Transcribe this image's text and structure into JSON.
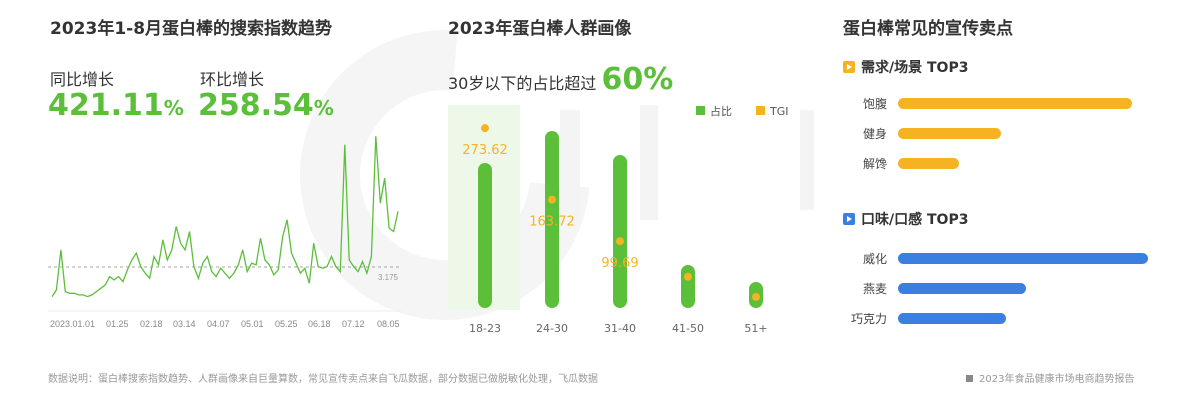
{
  "watermark": "飞瓜数据",
  "panel1": {
    "title": "2023年1-8月蛋白棒的搜索指数趋势",
    "yoy_label": "同比增长",
    "yoy_value": "421.11",
    "yoy_unit": "%",
    "mom_label": "环比增长",
    "mom_value": "258.54",
    "mom_unit": "%"
  },
  "panel2": {
    "title": "2023年蛋白棒人群画像",
    "headline": "30岁以下的占比超过",
    "headline_value": "60%"
  },
  "panel3": {
    "title": "蛋白棒常见的宣传卖点",
    "section1": {
      "title": "需求/场景 TOP3",
      "color": "#f5b324",
      "items": [
        {
          "label": "饱腹",
          "value": 100
        },
        {
          "label": "健身",
          "value": 44
        },
        {
          "label": "解馋",
          "value": 26
        }
      ]
    },
    "section2": {
      "title": "口味/口感 TOP3",
      "color": "#3b7fe0",
      "items": [
        {
          "label": "威化",
          "value": 100
        },
        {
          "label": "燕麦",
          "value": 51
        },
        {
          "label": "巧克力",
          "value": 43
        }
      ]
    }
  },
  "chart_data": [
    {
      "type": "line",
      "title": "2023年1-8月蛋白棒的搜索指数趋势",
      "x_ticks": [
        "2023.01.01",
        "01.25",
        "02.18",
        "03.14",
        "04.07",
        "05.01",
        "05.25",
        "06.18",
        "07.12",
        "08.05"
      ],
      "average_line": 3.175,
      "average_label": "3.175",
      "color": "#5bbf3a",
      "values": [
        1.4,
        1.8,
        4.2,
        1.7,
        1.6,
        1.6,
        1.5,
        1.5,
        1.4,
        1.5,
        1.7,
        1.9,
        2.1,
        2.6,
        2.4,
        2.6,
        2.3,
        3.0,
        3.6,
        4.0,
        3.2,
        2.8,
        2.5,
        3.8,
        3.3,
        4.8,
        3.6,
        4.2,
        5.6,
        4.6,
        4.2,
        5.3,
        3.2,
        2.5,
        3.4,
        3.8,
        2.9,
        2.6,
        3.1,
        2.8,
        2.5,
        2.8,
        3.3,
        4.2,
        2.9,
        3.4,
        3.3,
        4.9,
        3.6,
        3.3,
        2.7,
        3.0,
        5.0,
        6.0,
        4.0,
        3.4,
        2.8,
        3.1,
        2.2,
        4.6,
        3.2,
        3.1,
        3.2,
        3.8,
        3.2,
        2.9,
        10.5,
        3.6,
        3.2,
        2.9,
        3.5,
        2.8,
        3.8,
        11.0,
        7.0,
        8.5,
        5.5,
        5.3,
        6.5
      ],
      "ylim": [
        0,
        11.5
      ]
    },
    {
      "type": "bar",
      "title": "2023年蛋白棒人群画像",
      "categories": [
        "18-23",
        "24-30",
        "31-40",
        "41-50",
        "51+"
      ],
      "legend": [
        "占比",
        "TGI"
      ],
      "series": [
        {
          "name": "占比",
          "values": [
            145,
            177,
            153,
            43,
            26
          ],
          "color": "#5bbf3a"
        },
        {
          "name": "TGI",
          "values": [
            273.62,
            163.72,
            99.69,
            45,
            14
          ],
          "labels": [
            "273.62",
            "163.72",
            "99.69",
            "",
            ""
          ],
          "color": "#f5b324"
        }
      ],
      "highlight_category": "18-23"
    }
  ],
  "footer": {
    "note": "数据说明：蛋白棒搜索指数趋势、人群画像来自巨量算数，常见宣传卖点来自飞瓜数据，部分数据已做脱敏化处理，飞瓜数据",
    "source": "2023年食品健康市场电商趋势报告"
  }
}
